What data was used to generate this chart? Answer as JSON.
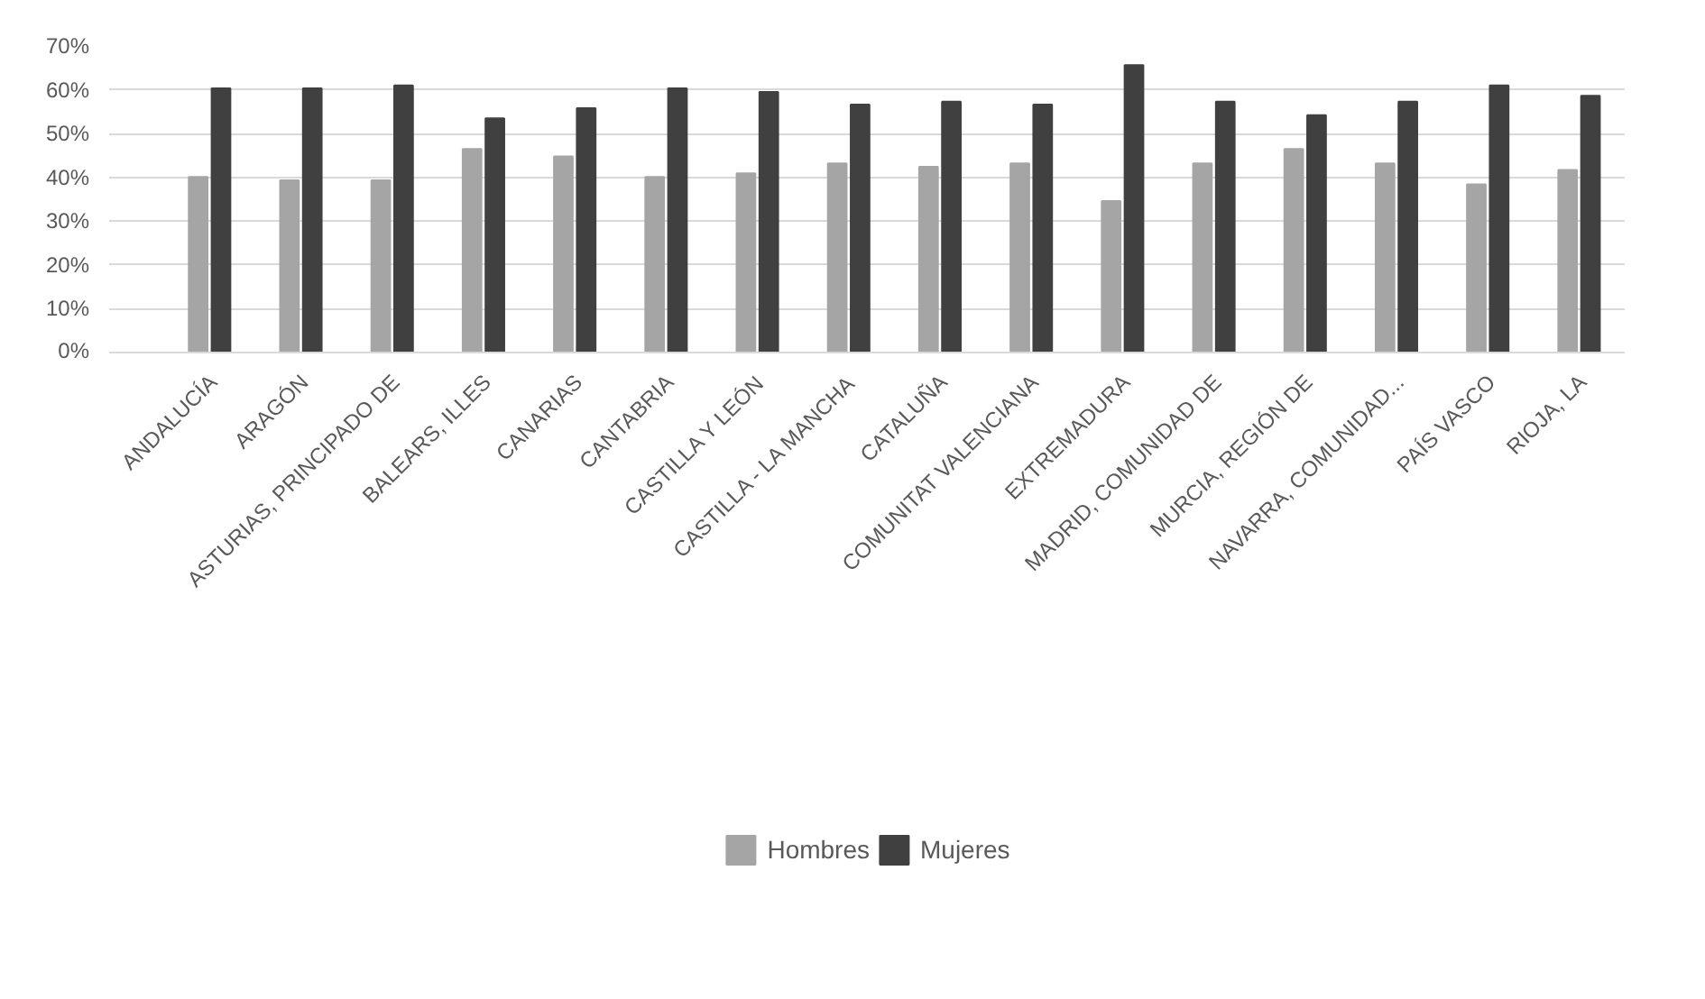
{
  "chart_data": {
    "type": "bar",
    "categories": [
      "ANDALUCÍA",
      "ARAGÓN",
      "ASTURIAS, PRINCIPADO DE",
      "BALEARS, ILLES",
      "CANARIAS",
      "CANTABRIA",
      "CASTILLA Y LEÓN",
      "CASTILLA - LA MANCHA",
      "CATALUÑA",
      "COMUNITAT VALENCIANA",
      "EXTREMADURA",
      "MADRID, COMUNIDAD DE",
      "MURCIA, REGIÓN DE",
      "NAVARRA, COMUNIDAD...",
      "PAÍS VASCO",
      "RIOJA, LA"
    ],
    "series": [
      {
        "name": "Hombres",
        "color": "#a5a5a5",
        "values": [
          40.1,
          39.3,
          39.3,
          46.5,
          44.8,
          40.1,
          40.9,
          43.2,
          42.4,
          43.2,
          34.6,
          43.2,
          46.5,
          43.2,
          38.4,
          41.7
        ]
      },
      {
        "name": "Mujeres",
        "color": "#404040",
        "values": [
          60.3,
          60.3,
          61.0,
          53.5,
          55.8,
          60.3,
          59.5,
          56.6,
          57.3,
          56.6,
          65.6,
          57.3,
          54.2,
          57.3,
          61.0,
          58.6
        ]
      }
    ],
    "ylim": [
      0,
      70
    ],
    "yticks": [
      {
        "value": 0,
        "label": "0%"
      },
      {
        "value": 10,
        "label": "10%"
      },
      {
        "value": 20,
        "label": "20%"
      },
      {
        "value": 30,
        "label": "30%"
      },
      {
        "value": 40,
        "label": "40%"
      },
      {
        "value": 50,
        "label": "50%"
      },
      {
        "value": 60,
        "label": "60%"
      },
      {
        "value": 70,
        "label": "70%"
      }
    ],
    "grid": "y",
    "legend": "bottom"
  }
}
